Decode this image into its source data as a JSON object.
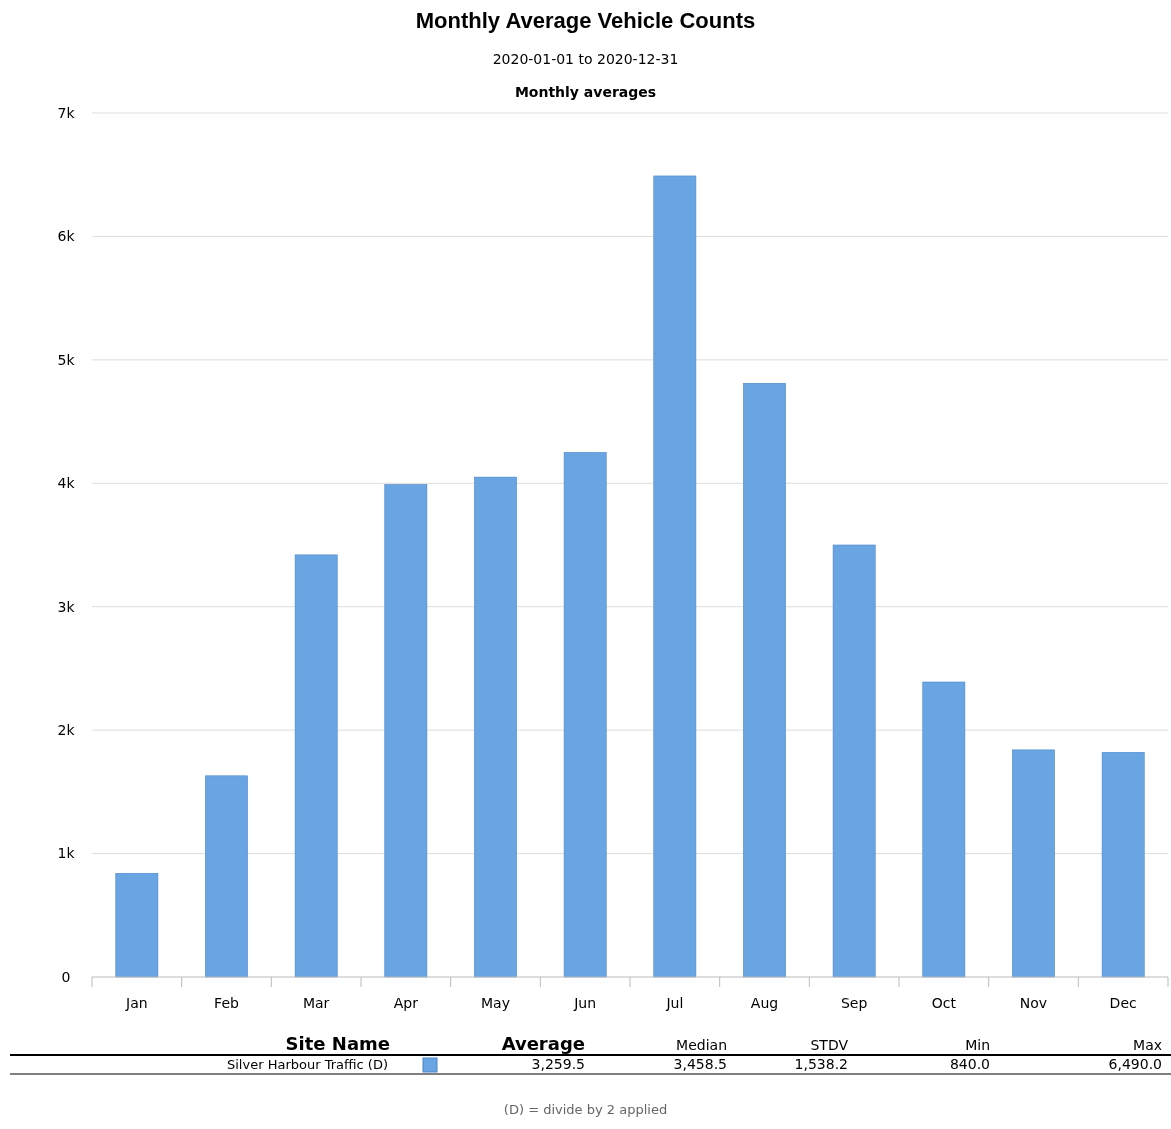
{
  "chart_data": {
    "type": "bar",
    "title": "Monthly Average Vehicle Counts",
    "subtitle": "2020-01-01 to 2020-12-31",
    "categories": [
      "Jan",
      "Feb",
      "Mar",
      "Apr",
      "May",
      "Jun",
      "Jul",
      "Aug",
      "Sep",
      "Oct",
      "Nov",
      "Dec"
    ],
    "series": [
      {
        "name": "Silver Harbour Traffic (D)",
        "color": "#6aa5e3",
        "values": [
          840,
          1630,
          3420,
          3990,
          4050,
          4250,
          6490,
          4810,
          3500,
          2390,
          1840,
          1820
        ]
      }
    ],
    "ylim": [
      0,
      7000
    ],
    "yticks": [
      0,
      {
        "value": 1000,
        "label": "1k"
      },
      {
        "value": 2000,
        "label": "2k"
      },
      {
        "value": 3000,
        "label": "3k"
      },
      {
        "value": 4000,
        "label": "4k"
      },
      {
        "value": 5000,
        "label": "5k"
      },
      {
        "value": 6000,
        "label": "6k"
      },
      {
        "value": 7000,
        "label": "7k"
      }
    ],
    "grid": "y",
    "legend": "bottom",
    "annotations": [
      "Monthly averages",
      "Site Name",
      "Average",
      "Median",
      "STDV",
      "Min",
      "Max",
      "3,259.5",
      "3,458.5",
      "1,538.2",
      "840.0",
      "6,490.0",
      "(D) = divide by 2 applied"
    ]
  }
}
